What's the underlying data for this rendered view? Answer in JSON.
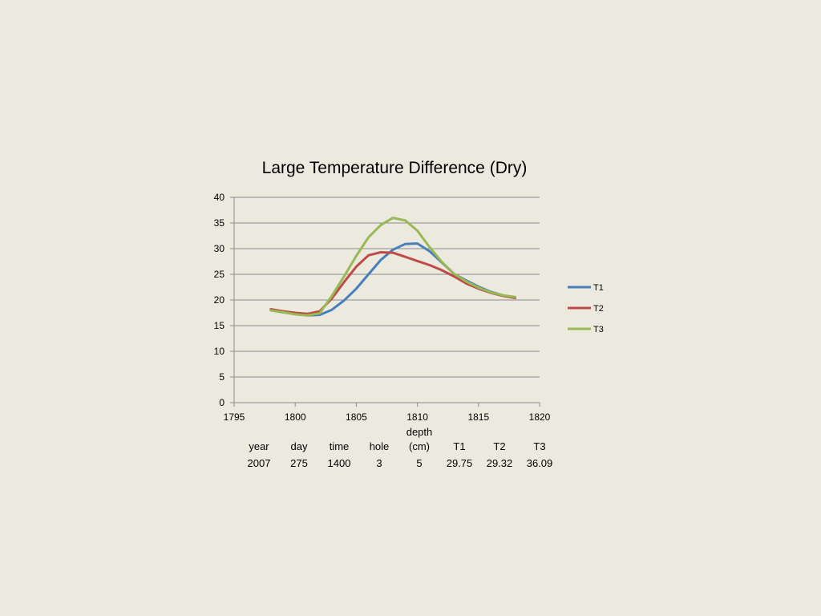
{
  "chart_data": {
    "type": "line",
    "title": "Large Temperature Difference (Dry)",
    "xlabel": "",
    "ylabel": "",
    "xlim": [
      1795,
      1820
    ],
    "ylim": [
      0,
      40
    ],
    "x_ticks": [
      1795,
      1800,
      1805,
      1810,
      1815,
      1820
    ],
    "y_ticks": [
      0,
      5,
      10,
      15,
      20,
      25,
      30,
      35,
      40
    ],
    "grid": "horizontal",
    "legend": "right",
    "series": [
      {
        "name": "T1",
        "color": "#4a7ebb",
        "x": [
          1798,
          1799,
          1800,
          1801,
          1802,
          1803,
          1804,
          1805,
          1806,
          1807,
          1808,
          1809,
          1810,
          1811,
          1812,
          1813,
          1814,
          1815,
          1816,
          1817,
          1818
        ],
        "y": [
          18.0,
          17.6,
          17.3,
          17.0,
          17.1,
          18.1,
          19.9,
          22.2,
          25.0,
          27.8,
          29.8,
          30.9,
          31.0,
          29.5,
          27.3,
          25.1,
          23.8,
          22.6,
          21.6,
          20.9,
          20.4
        ]
      },
      {
        "name": "T2",
        "color": "#be4b48",
        "x": [
          1798,
          1799,
          1800,
          1801,
          1802,
          1803,
          1804,
          1805,
          1806,
          1807,
          1808,
          1809,
          1810,
          1811,
          1812,
          1813,
          1814,
          1815,
          1816,
          1817,
          1818
        ],
        "y": [
          18.2,
          17.8,
          17.5,
          17.3,
          17.8,
          20.3,
          23.5,
          26.5,
          28.7,
          29.3,
          29.2,
          28.4,
          27.6,
          26.8,
          25.8,
          24.6,
          23.2,
          22.2,
          21.4,
          20.8,
          20.4
        ]
      },
      {
        "name": "T3",
        "color": "#98b954",
        "x": [
          1798,
          1799,
          1800,
          1801,
          1802,
          1803,
          1804,
          1805,
          1806,
          1807,
          1808,
          1809,
          1810,
          1811,
          1812,
          1813,
          1814,
          1815,
          1816,
          1817,
          1818
        ],
        "y": [
          18.0,
          17.6,
          17.2,
          17.0,
          17.4,
          20.8,
          24.6,
          28.6,
          32.2,
          34.6,
          36.0,
          35.5,
          33.5,
          30.3,
          27.4,
          25.1,
          23.6,
          22.4,
          21.5,
          20.9,
          20.6
        ]
      }
    ]
  },
  "table": {
    "headers": [
      "year",
      "day",
      "time",
      "hole",
      "depth\n(cm)",
      "T1",
      "T2",
      "T3"
    ],
    "values": [
      "2007",
      "275",
      "1400",
      "3",
      "5",
      "29.75",
      "29.32",
      "36.09"
    ]
  }
}
